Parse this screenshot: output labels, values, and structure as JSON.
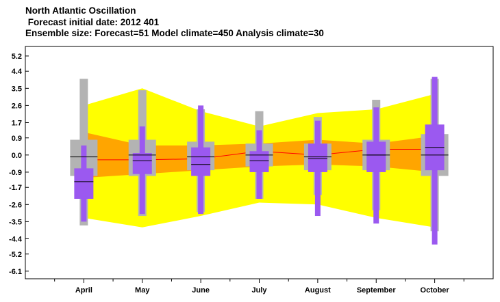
{
  "chart_data": {
    "type": "box",
    "title": "North Atlantic Oscillation",
    "subtitle_lines": [
      " Forecast initial date: 2012 401",
      "Ensemble size: Forecast=51 Model climate=450 Analysis climate=30"
    ],
    "xlabel": "",
    "ylabel": "",
    "categories": [
      "April",
      "May",
      "June",
      "July",
      "August",
      "September",
      "October"
    ],
    "y_ticks": [
      "5.2",
      "4.4",
      "3.5",
      "2.6",
      "1.7",
      "0.9",
      "0.0",
      "-0.9",
      "-1.7",
      "-2.6",
      "-3.5",
      "-4.4",
      "-5.2",
      "-6.1"
    ],
    "ylim": [
      -6.5,
      5.7
    ],
    "grid": false,
    "legend": "none",
    "series": [
      {
        "kind": "analysis-climate-outer-band",
        "upper": [
          2.6,
          3.5,
          2.3,
          1.5,
          2.2,
          2.4,
          3.2
        ],
        "lower": [
          -3.3,
          -3.8,
          -3.2,
          -2.5,
          -2.6,
          -3.3,
          -3.8
        ]
      },
      {
        "kind": "analysis-climate-inner-band",
        "upper": [
          1.2,
          0.5,
          0.5,
          0.6,
          0.8,
          0.6,
          1.0
        ],
        "lower": [
          -1.2,
          -1.0,
          -0.8,
          -0.6,
          -0.5,
          -0.6,
          -0.9
        ]
      },
      {
        "kind": "analysis-climate-median",
        "values": [
          -0.25,
          -0.25,
          -0.2,
          0.2,
          0.0,
          0.3,
          0.3
        ]
      },
      {
        "kind": "model-climate",
        "min": [
          -3.7,
          -3.2,
          -3.0,
          -2.3,
          -2.1,
          -2.9,
          -4.0
        ],
        "q1": [
          -1.1,
          -1.1,
          -0.8,
          -0.6,
          -0.8,
          -0.8,
          -1.1
        ],
        "median": [
          -0.1,
          0.0,
          -0.1,
          0.0,
          -0.1,
          0.0,
          0.0
        ],
        "q3": [
          0.8,
          0.8,
          0.7,
          0.6,
          0.6,
          0.8,
          1.1
        ],
        "max": [
          4.0,
          3.4,
          2.4,
          2.3,
          2.0,
          2.9,
          4.0
        ]
      },
      {
        "kind": "forecast",
        "min": [
          -3.5,
          -3.1,
          -3.1,
          -2.3,
          -3.2,
          -3.6,
          -4.7
        ],
        "q1": [
          -2.3,
          -1.0,
          -1.1,
          -0.9,
          -0.9,
          -0.9,
          -0.8
        ],
        "median": [
          -1.4,
          -0.3,
          -0.5,
          -0.3,
          -0.2,
          0.0,
          0.4
        ],
        "q3": [
          -0.7,
          0.1,
          0.4,
          0.2,
          0.6,
          0.7,
          1.6
        ],
        "max": [
          0.5,
          1.5,
          2.6,
          1.3,
          1.8,
          2.5,
          4.1
        ]
      }
    ],
    "colors": {
      "outer_band": "#ffff00",
      "inner_band": "#ffa500",
      "climate_median": "#ff0000",
      "model_box": "#b3b3b3",
      "forecast_box": "#9b59f0",
      "median_line": "#000000"
    }
  }
}
